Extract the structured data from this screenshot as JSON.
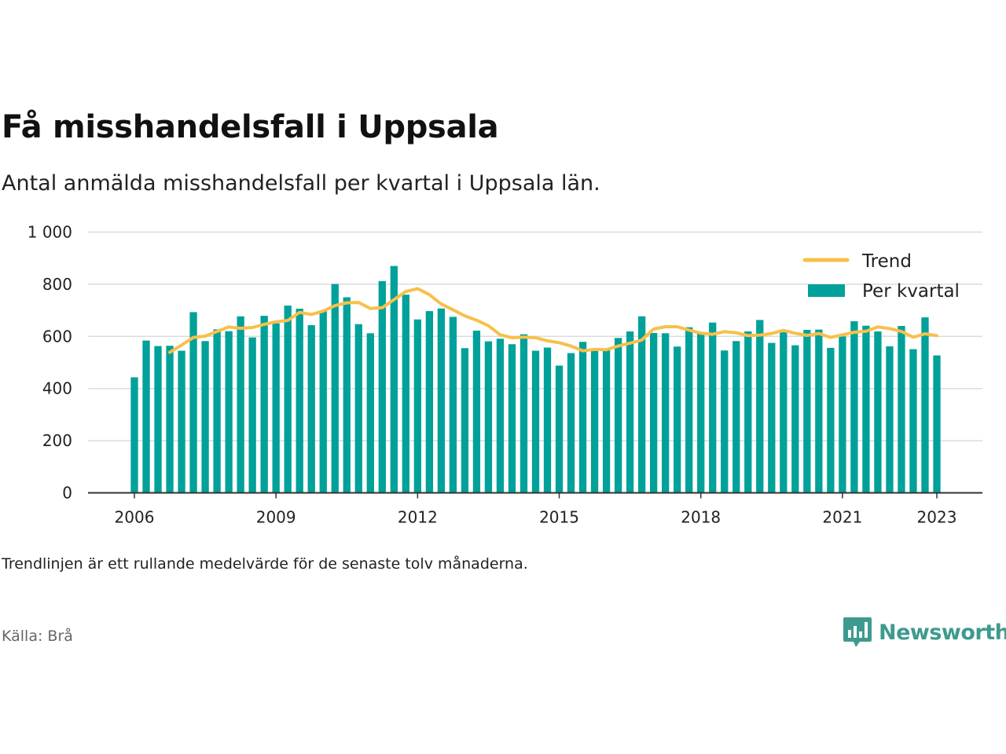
{
  "title": "Få misshandelsfall i Uppsala",
  "subtitle": "Antal anmälda misshandelsfall per kvartal i Uppsala län.",
  "note": "Trendlinjen är ett rullande medelvärde för de senaste tolv månaderna.",
  "source": "Källa: Brå",
  "brand": "Newsworthy",
  "colors": {
    "bars": "#00a19a",
    "trend": "#f7c04a",
    "brand": "#3e9a8e"
  },
  "chart_data": {
    "type": "bar",
    "x_start": 2006.0,
    "x_step": 0.25,
    "ylim": [
      0,
      1000
    ],
    "xlim": [
      2006,
      2023
    ],
    "yticks": [
      0,
      200,
      400,
      600,
      800,
      1000
    ],
    "ytick_labels": [
      "0",
      "200",
      "400",
      "600",
      "800",
      "1 000"
    ],
    "xticks": [
      2006,
      2009,
      2012,
      2015,
      2018,
      2021,
      2023
    ],
    "xtick_labels": [
      "2006",
      "2009",
      "2012",
      "2015",
      "2018",
      "2021",
      "2023"
    ],
    "grid": true,
    "legend_position": "top-right",
    "series": [
      {
        "name": "Per kvartal",
        "kind": "bar",
        "values": [
          443,
          584,
          563,
          564,
          545,
          693,
          582,
          627,
          620,
          677,
          596,
          679,
          650,
          718,
          706,
          643,
          700,
          801,
          750,
          647,
          612,
          812,
          870,
          760,
          665,
          697,
          707,
          675,
          555,
          622,
          581,
          591,
          570,
          608,
          545,
          557,
          488,
          536,
          579,
          549,
          554,
          594,
          619,
          677,
          613,
          612,
          561,
          635,
          610,
          653,
          546,
          582,
          619,
          663,
          575,
          616,
          566,
          625,
          626,
          556,
          600,
          658,
          641,
          619,
          562,
          640,
          551,
          673,
          527
        ]
      },
      {
        "name": "Trend",
        "kind": "line",
        "x_start": 2006.75,
        "values": [
          539,
          567,
          596,
          601,
          619,
          636,
          631,
          634,
          646,
          656,
          661,
          692,
          684,
          697,
          718,
          729,
          730,
          707,
          710,
          741,
          772,
          783,
          760,
          724,
          702,
          679,
          662,
          641,
          606,
          595,
          597,
          595,
          583,
          576,
          563,
          545,
          550,
          549,
          563,
          574,
          586,
          628,
          637,
          637,
          624,
          612,
          608,
          618,
          614,
          603,
          605,
          611,
          623,
          612,
          604,
          611,
          596,
          606,
          616,
          620,
          636,
          630,
          619,
          597,
          610,
          603
        ]
      }
    ]
  }
}
